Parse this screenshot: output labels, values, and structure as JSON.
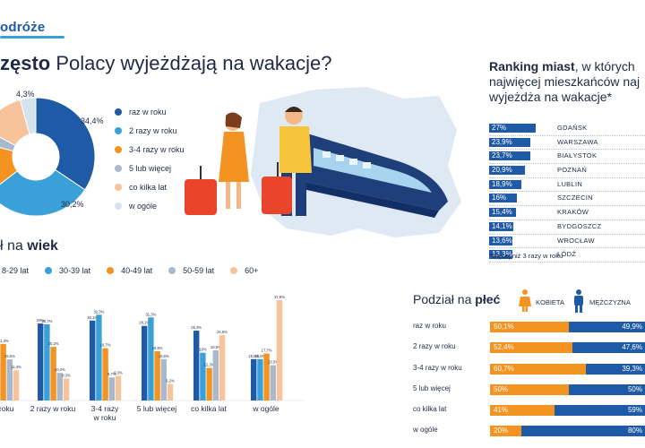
{
  "logo": {
    "text": "odróże"
  },
  "title": {
    "bold": "zęsto",
    "rest": " Polacy wyjeżdżają na wakacje?"
  },
  "colors": {
    "navy": "#1f5aa6",
    "blue": "#3aa0d8",
    "orange": "#f39321",
    "grey": "#a9b8cc",
    "peach": "#f6c39a",
    "lightblue": "#d4e3ef"
  },
  "frequency_legend": [
    "raz w roku",
    "2 razy w roku",
    "3-4 razy w roku",
    "5 lub więcej",
    "co kilka lat",
    "w ogóle"
  ],
  "ranking": {
    "title_bold": "Ranking miast",
    "title_rest_1": ", w których",
    "title_line2": "najwięcej mieszkańców naj",
    "title_line3": "wyjeżdża na wakacje*",
    "note": "*więcej niż 3 razy w roku"
  },
  "age": {
    "title_rest": "ł na ",
    "title_bold": "wiek"
  },
  "gender": {
    "title_rest": "Podział na ",
    "title_bold": "płeć",
    "female": "KOBIETA",
    "male": "MĘŻCZYZNA"
  },
  "chart_data": [
    {
      "type": "pie",
      "title": "",
      "categories": [
        "raz w roku",
        "2 razy w roku",
        "3-4 razy w roku",
        "5 lub więcej",
        "co kilka lat",
        "w ogóle"
      ],
      "values": [
        34.4,
        30.2,
        14.4,
        4.0,
        12.7,
        4.3
      ],
      "labels_shown": [
        "34,4%",
        "30,2%",
        "4,3%"
      ]
    },
    {
      "type": "bar",
      "title": "Ranking miast",
      "categories": [
        "GDAŃSK",
        "WARSZAWA",
        "BIAŁYSTOK",
        "POZNAŃ",
        "LUBLIN",
        "SZCZECIN",
        "KRAKÓW",
        "BYDGOSZCZ",
        "WROCŁAW",
        "ŁÓDŹ"
      ],
      "values": [
        27,
        23.9,
        23.7,
        20.9,
        18.9,
        16,
        15.4,
        14.1,
        13.6,
        13.3
      ],
      "value_labels": [
        "27%",
        "23,9%",
        "23,7%",
        "20,9%",
        "18,9%",
        "16%",
        "15,4%",
        "14,1%",
        "13,6%",
        "13,3%"
      ]
    },
    {
      "type": "bar",
      "title": "Podział na wiek",
      "categories": [
        "w roku",
        "2 razy w roku",
        "3-4 razy\nw roku",
        "5 lub więcej",
        "co kilka lat",
        "w ogóle"
      ],
      "series": [
        {
          "name": "8-29 lat",
          "values": [
            null,
            29.0,
            30.1,
            28.1,
            26.3,
            15.6
          ]
        },
        {
          "name": "30-39 lat",
          "values": [
            null,
            28.7,
            32.3,
            31.3,
            18.0,
            15.6
          ]
        },
        {
          "name": "40-49 lat",
          "values": [
            21.3,
            20.2,
            19.7,
            18.6,
            12.3,
            17.7
          ]
        },
        {
          "name": "50-59 lat",
          "values": [
            15.5,
            10.4,
            8.7,
            15.6,
            18.9,
            13.3
          ]
        },
        {
          "name": "60+",
          "values": [
            11.4,
            8.3,
            9.3,
            6.2,
            24.6,
            37.8
          ]
        }
      ],
      "value_labels": [
        [
          null,
          null,
          "21,3%",
          "15,5%",
          "11,4%"
        ],
        [
          "29%",
          "28,7%",
          "20,2%",
          "10,4%",
          "8,3%"
        ],
        [
          "30,1%",
          "32,3%",
          "19,7%",
          "8,7%",
          "9,3%"
        ],
        [
          "28,1%",
          "31,3%",
          "18,6%",
          "15,6%",
          "6,2%"
        ],
        [
          "26,3%",
          "18%",
          "12,3%",
          "18,9%",
          "24,6%"
        ],
        [
          "15,6%",
          "15,6%",
          "17,7%",
          "13,3%",
          "37,8%"
        ]
      ]
    },
    {
      "type": "bar",
      "title": "Podział na płeć",
      "categories": [
        "raz w roku",
        "2 razy w roku",
        "3-4 razy w roku",
        "5 lub więcej",
        "co kilka lat",
        "w ogóle"
      ],
      "series": [
        {
          "name": "KOBIETA",
          "values": [
            50.1,
            52.4,
            60.7,
            50,
            41,
            20
          ]
        },
        {
          "name": "MĘŻCZYZNA",
          "values": [
            49.9,
            47.6,
            39.3,
            50,
            59,
            80
          ]
        }
      ],
      "female_labels": [
        "50,1%",
        "52,4%",
        "60,7%",
        "50%",
        "41%",
        "20%"
      ],
      "male_labels": [
        "49,9%",
        "47,6%",
        "39,3%",
        "50%",
        "59%",
        "80%"
      ]
    }
  ]
}
